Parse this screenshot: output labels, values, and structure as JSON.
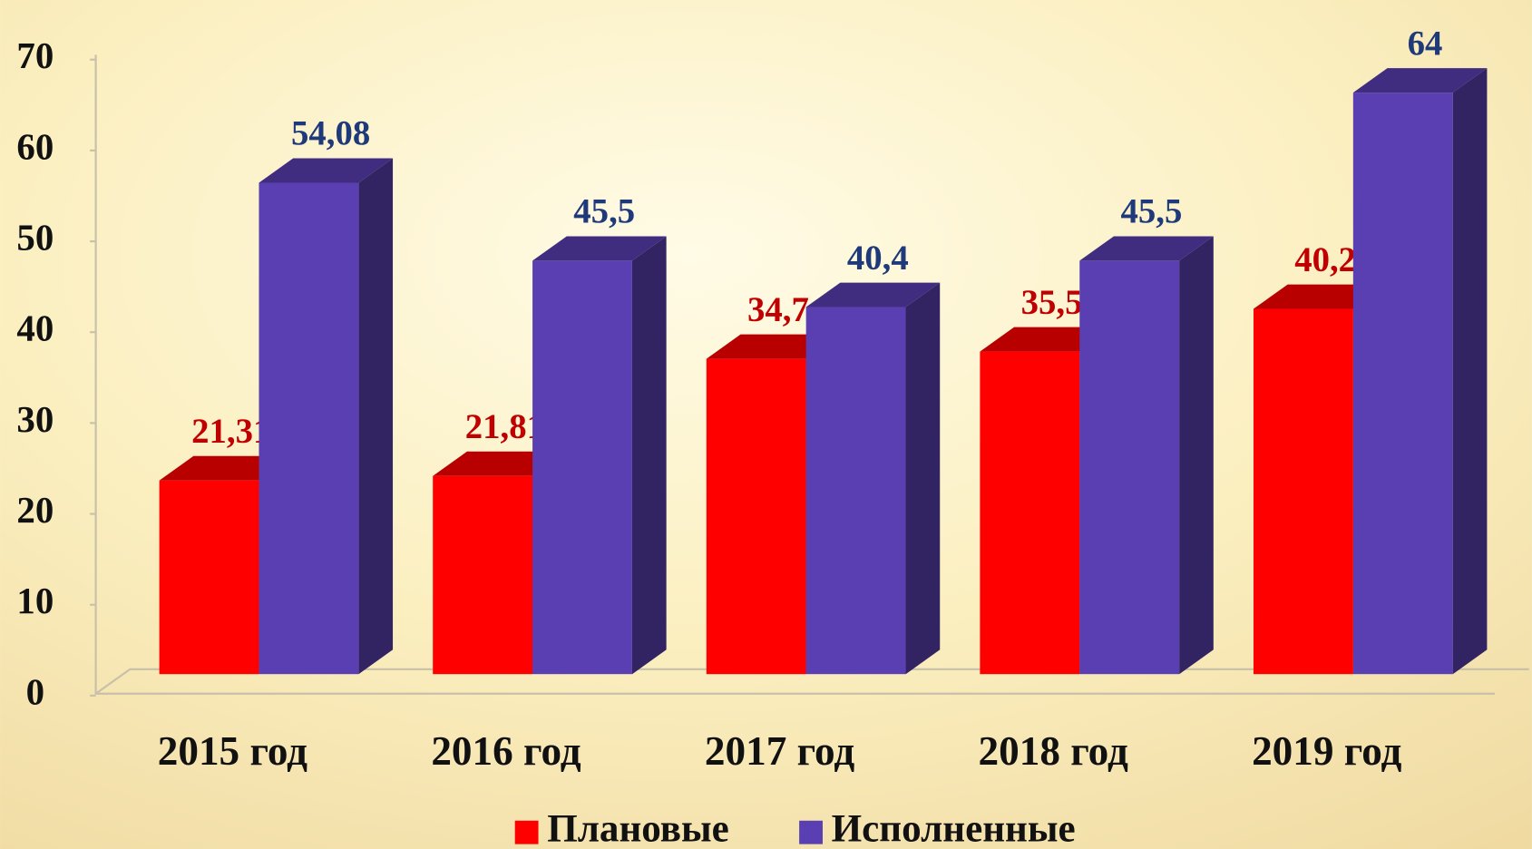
{
  "chart_data": {
    "type": "bar3d",
    "categories": [
      "2015 год",
      "2016 год",
      "2017 год",
      "2018 год",
      "2019 год"
    ],
    "series": [
      {
        "name": "Плановые",
        "color": "#ff0000",
        "values": [
          21.31,
          21.81,
          34.7,
          35.5,
          40.2
        ],
        "value_labels": [
          "21,31",
          "21,81",
          "34,7",
          "35,5",
          "40,2"
        ]
      },
      {
        "name": "Исполненные",
        "color": "#5a3fb2",
        "values": [
          54.08,
          45.5,
          40.4,
          45.5,
          64
        ],
        "value_labels": [
          "54,08",
          "45,5",
          "40,4",
          "45,5",
          "64"
        ]
      }
    ],
    "ylim": [
      0,
      70
    ],
    "yticks": [
      0,
      10,
      20,
      30,
      40,
      50,
      60,
      70
    ],
    "legend": "bottom"
  }
}
